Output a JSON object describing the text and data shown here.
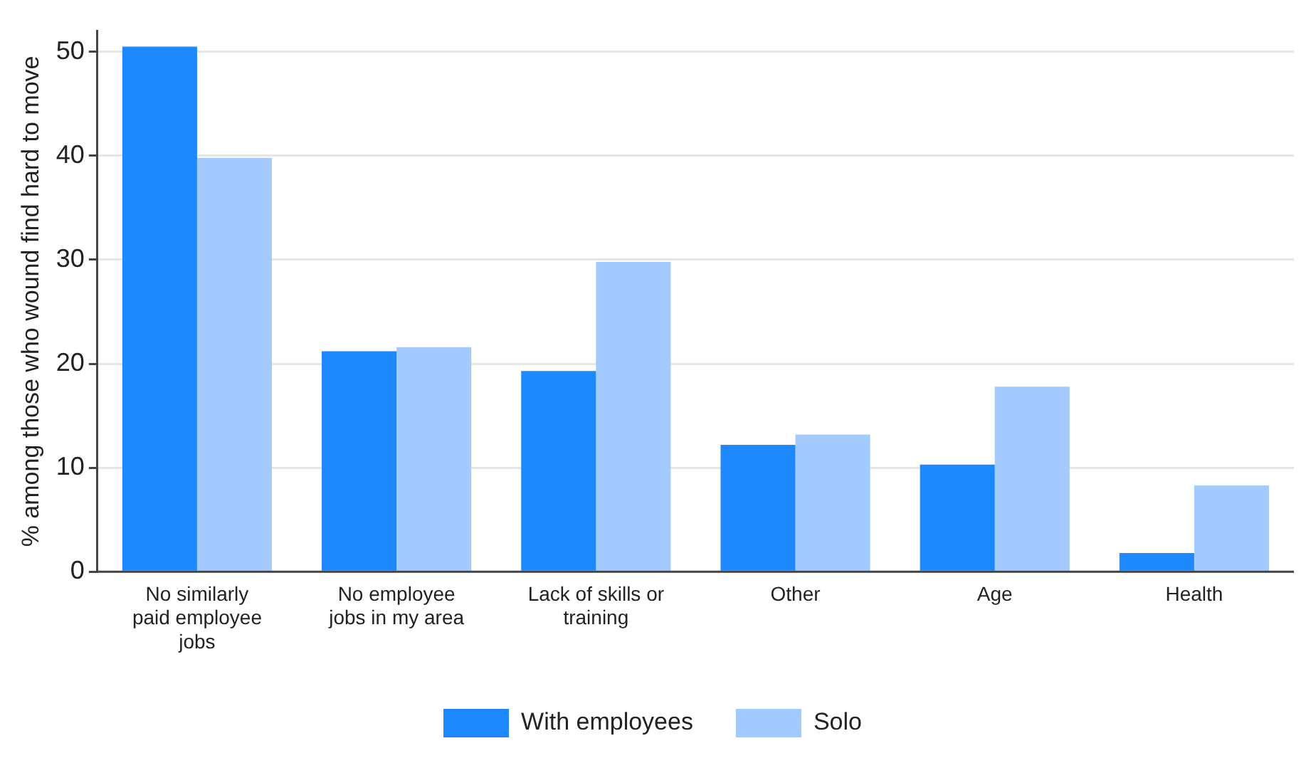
{
  "chart_data": {
    "type": "bar",
    "ylabel": "% among those who wound find hard to move",
    "categories": [
      "No similarly paid employee jobs",
      "No employee jobs in my area",
      "Lack of skills or training",
      "Other",
      "Age",
      "Health"
    ],
    "series": [
      {
        "name": "With employees",
        "color": "#1e88ff",
        "values": [
          50.5,
          21.2,
          19.3,
          12.2,
          10.3,
          1.8
        ]
      },
      {
        "name": "Solo",
        "color": "#a3cbff",
        "values": [
          39.8,
          21.6,
          29.8,
          13.2,
          17.8,
          8.3
        ]
      }
    ],
    "ylim": [
      0,
      52
    ],
    "yticks": [
      0,
      10,
      20,
      30,
      40,
      50
    ],
    "grid": "y",
    "legend": "bottom"
  }
}
